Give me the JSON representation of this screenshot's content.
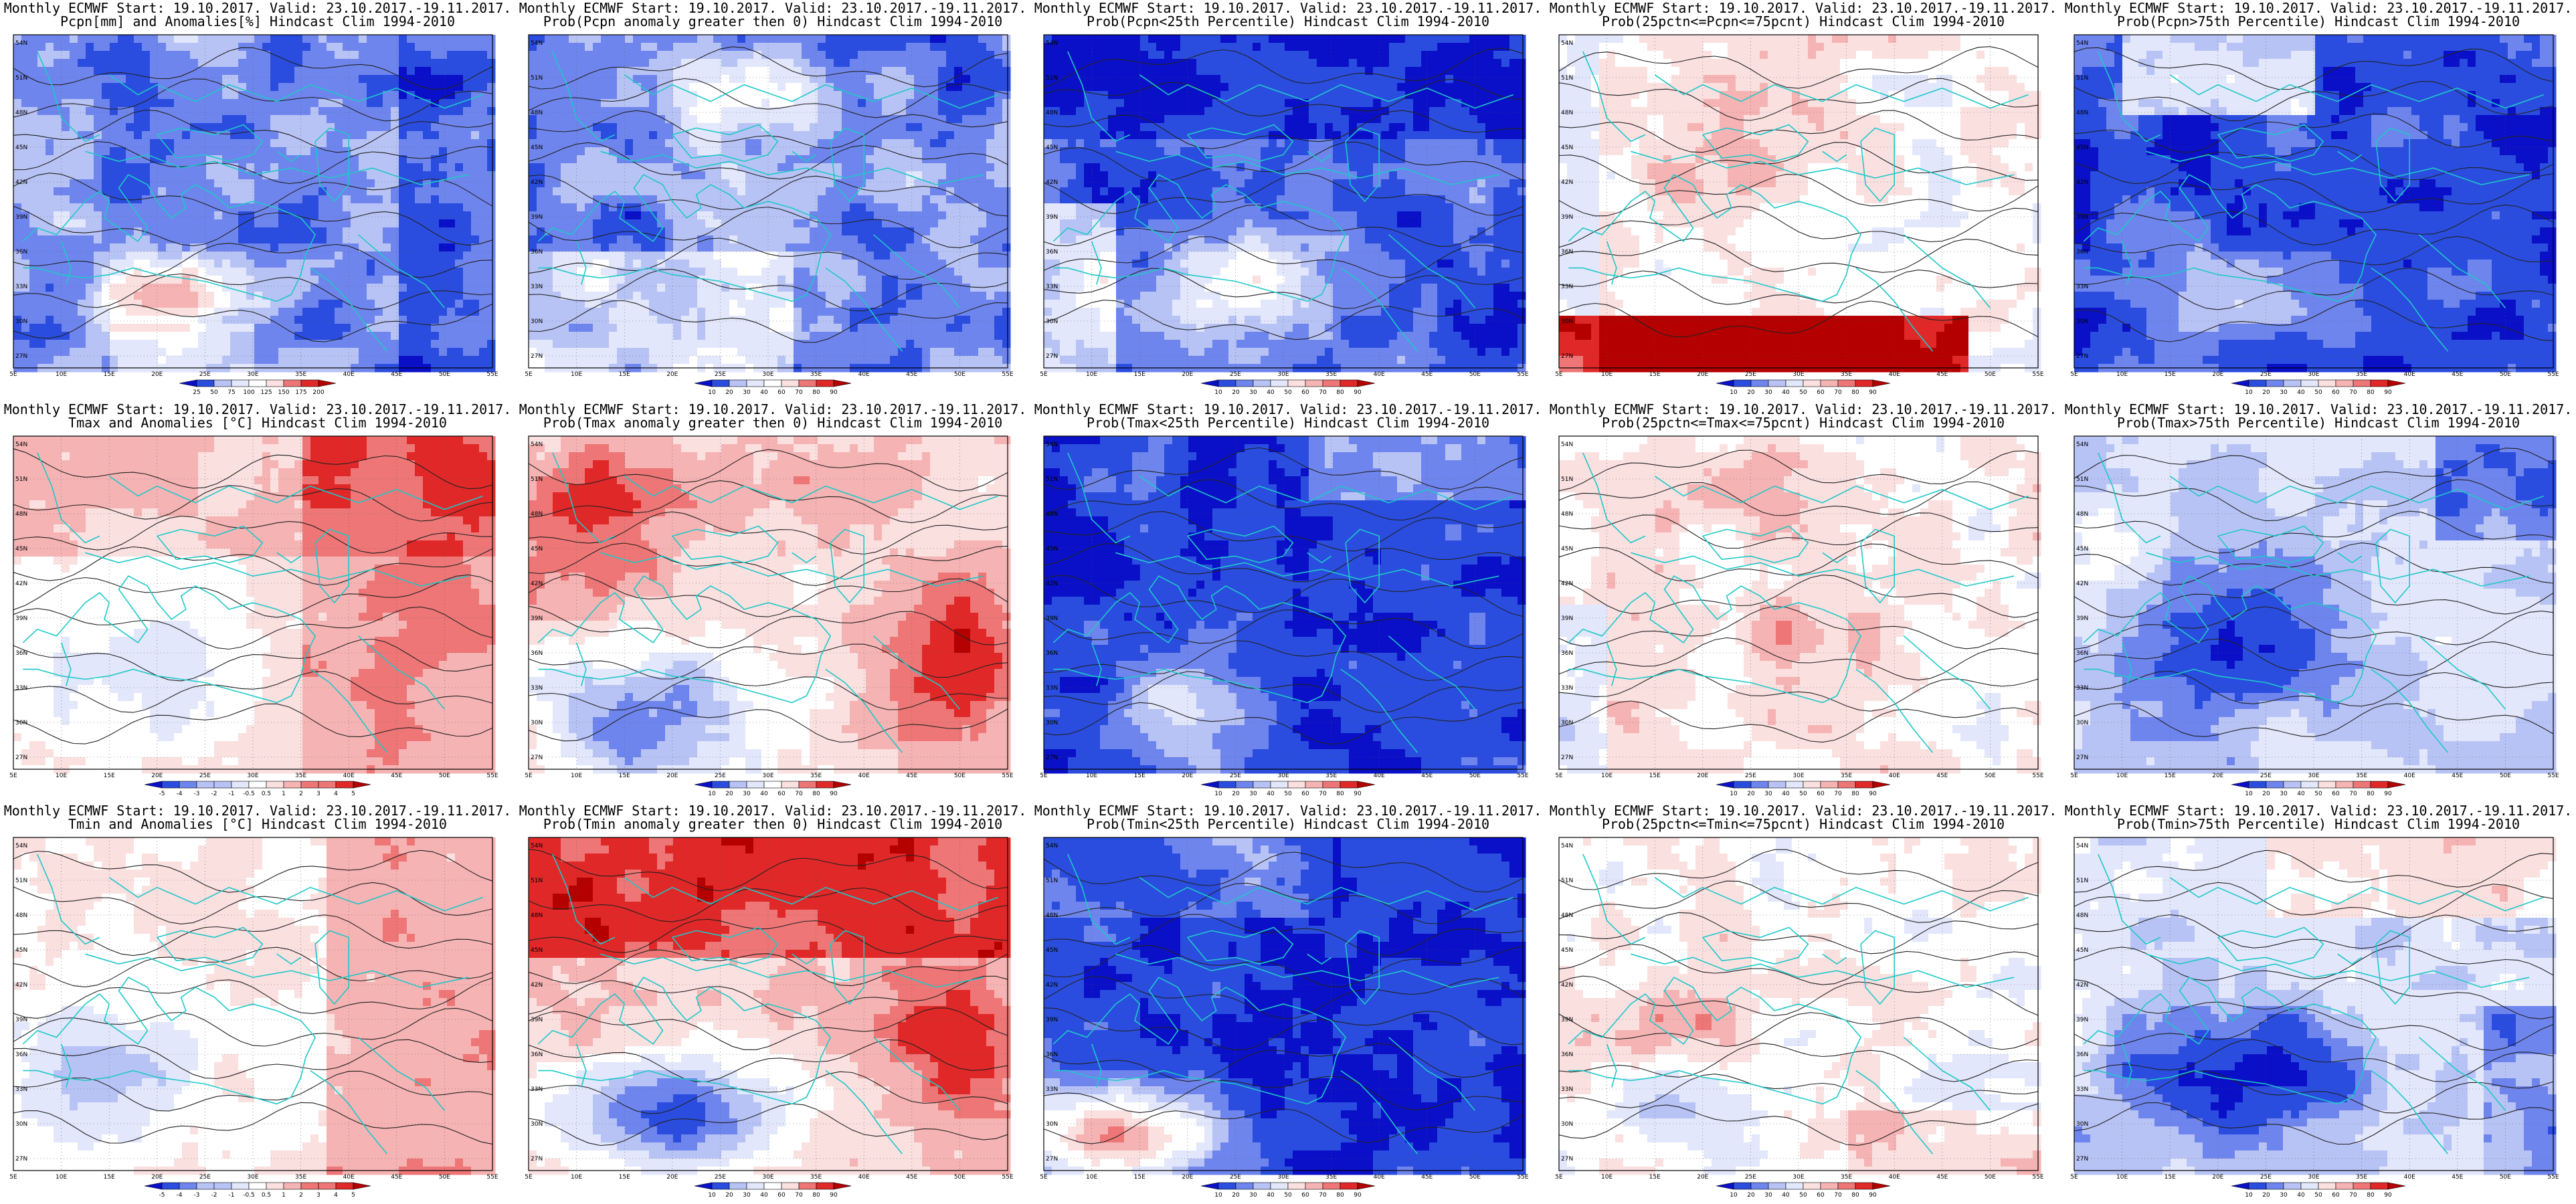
{
  "axes": {
    "lat_labels": [
      "54N",
      "51N",
      "48N",
      "45N",
      "42N",
      "39N",
      "36N",
      "33N",
      "30N",
      "27N"
    ],
    "lon_labels": [
      "5E",
      "10E",
      "15E",
      "20E",
      "25E",
      "30E",
      "35E",
      "40E",
      "45E",
      "50E",
      "55E"
    ]
  },
  "colors": {
    "deep_blue": "#0a10c8",
    "blue": "#2a4de0",
    "mid_blue": "#6f85ee",
    "light_blue": "#b8c3f5",
    "pale_blue": "#e2e7fb",
    "white": "#ffffff",
    "pale_red": "#fbe0e0",
    "light_red": "#f6b3b3",
    "mid_red": "#ee7676",
    "red": "#e02828",
    "deep_red": "#b40000",
    "coast_cyan": "#1ec8c8",
    "contour_black": "#222222"
  },
  "panels": [
    {
      "id": "pcpn-anom",
      "title1": "Monthly ECMWF Start: 19.10.2017. Valid: 23.10.2017.-19.11.2017.",
      "title2": "Pcpn[mm] and Anomalies[%] Hindcast Clim 1994-2010",
      "colorbar": [
        "25",
        "50",
        "75",
        "100",
        "125",
        "150",
        "175",
        "200"
      ],
      "field": "pcpn_anom"
    },
    {
      "id": "prob-pcpn-gt0",
      "title1": "Monthly ECMWF Start: 19.10.2017. Valid: 23.10.2017.-19.11.2017.",
      "title2": "Prob(Pcpn anomaly greater then 0) Hindcast Clim 1994-2010",
      "colorbar": [
        "10",
        "20",
        "30",
        "40",
        "60",
        "70",
        "80",
        "90"
      ],
      "field": "pcpn_gt0"
    },
    {
      "id": "prob-pcpn-lt25",
      "title1": "Monthly ECMWF Start: 19.10.2017. Valid: 23.10.2017.-19.11.2017.",
      "title2": "Prob(Pcpn<25th Percentile) Hindcast Clim 1994-2010",
      "colorbar": [
        "10",
        "20",
        "30",
        "40",
        "50",
        "60",
        "70",
        "80",
        "90"
      ],
      "field": "pcpn_lt25"
    },
    {
      "id": "prob-pcpn-mid",
      "title1": "Monthly ECMWF Start: 19.10.2017. Valid: 23.10.2017.-19.11.2017.",
      "title2": "Prob(25pctn<=Pcpn<=75pcnt) Hindcast Clim 1994-2010",
      "colorbar": [
        "10",
        "20",
        "30",
        "40",
        "50",
        "60",
        "70",
        "80",
        "90"
      ],
      "field": "pcpn_mid"
    },
    {
      "id": "prob-pcpn-gt75",
      "title1": "Monthly ECMWF Start: 19.10.2017. Valid: 23.10.2017.-19.11.2017.",
      "title2": "Prob(Pcpn>75th Percentile) Hindcast Clim 1994-2010",
      "colorbar": [
        "10",
        "20",
        "30",
        "40",
        "50",
        "60",
        "70",
        "80",
        "90"
      ],
      "field": "pcpn_gt75"
    },
    {
      "id": "tmax-anom",
      "title1": "Monthly ECMWF Start: 19.10.2017. Valid: 23.10.2017.-19.11.2017.",
      "title2": "Tmax and Anomalies [°C] Hindcast Clim 1994-2010",
      "colorbar": [
        "-5",
        "-4",
        "-3",
        "-2",
        "-1",
        "-0.5",
        "0.5",
        "1",
        "2",
        "3",
        "4",
        "5"
      ],
      "field": "tmax_anom"
    },
    {
      "id": "prob-tmax-gt0",
      "title1": "Monthly ECMWF Start: 19.10.2017. Valid: 23.10.2017.-19.11.2017.",
      "title2": "Prob(Tmax anomaly greater then 0) Hindcast Clim 1994-2010",
      "colorbar": [
        "10",
        "20",
        "30",
        "40",
        "60",
        "70",
        "80",
        "90"
      ],
      "field": "tmax_gt0"
    },
    {
      "id": "prob-tmax-lt25",
      "title1": "Monthly ECMWF Start: 19.10.2017. Valid: 23.10.2017.-19.11.2017.",
      "title2": "Prob(Tmax<25th Percentile) Hindcast Clim 1994-2010",
      "colorbar": [
        "10",
        "20",
        "30",
        "40",
        "50",
        "60",
        "70",
        "80",
        "90"
      ],
      "field": "tmax_lt25"
    },
    {
      "id": "prob-tmax-mid",
      "title1": "Monthly ECMWF Start: 19.10.2017. Valid: 23.10.2017.-19.11.2017.",
      "title2": "Prob(25pctn<=Tmax<=75pcnt) Hindcast Clim 1994-2010",
      "colorbar": [
        "10",
        "20",
        "30",
        "40",
        "50",
        "60",
        "70",
        "80",
        "90"
      ],
      "field": "tmax_mid"
    },
    {
      "id": "prob-tmax-gt75",
      "title1": "Monthly ECMWF Start: 19.10.2017. Valid: 23.10.2017.-19.11.2017.",
      "title2": "Prob(Tmax>75th Percentile) Hindcast Clim 1994-2010",
      "colorbar": [
        "10",
        "20",
        "30",
        "40",
        "50",
        "60",
        "70",
        "80",
        "90"
      ],
      "field": "tmax_gt75"
    },
    {
      "id": "tmin-anom",
      "title1": "Monthly ECMWF Start: 19.10.2017. Valid: 23.10.2017.-19.11.2017.",
      "title2": "Tmin and Anomalies [°C] Hindcast Clim 1994-2010",
      "colorbar": [
        "-5",
        "-4",
        "-3",
        "-2",
        "-1",
        "-0.5",
        "0.5",
        "1",
        "2",
        "3",
        "4",
        "5"
      ],
      "field": "tmin_anom"
    },
    {
      "id": "prob-tmin-gt0",
      "title1": "Monthly ECMWF Start: 19.10.2017. Valid: 23.10.2017.-19.11.2017.",
      "title2": "Prob(Tmin anomaly greater then 0) Hindcast Clim 1994-2010",
      "colorbar": [
        "10",
        "20",
        "30",
        "40",
        "60",
        "70",
        "80",
        "90"
      ],
      "field": "tmin_gt0"
    },
    {
      "id": "prob-tmin-lt25",
      "title1": "Monthly ECMWF Start: 19.10.2017. Valid: 23.10.2017.-19.11.2017.",
      "title2": "Prob(Tmin<25th Percentile) Hindcast Clim 1994-2010",
      "colorbar": [
        "10",
        "20",
        "30",
        "40",
        "50",
        "60",
        "70",
        "80",
        "90"
      ],
      "field": "tmin_lt25"
    },
    {
      "id": "prob-tmin-mid",
      "title1": "Monthly ECMWF Start: 19.10.2017. Valid: 23.10.2017.-19.11.2017.",
      "title2": "Prob(25pctn<=Tmin<=75pcnt) Hindcast Clim 1994-2010",
      "colorbar": [
        "10",
        "20",
        "30",
        "40",
        "50",
        "60",
        "70",
        "80",
        "90"
      ],
      "field": "tmin_mid"
    },
    {
      "id": "prob-tmin-gt75",
      "title1": "Monthly ECMWF Start: 19.10.2017. Valid: 23.10.2017.-19.11.2017.",
      "title2": "Prob(Tmin>75th Percentile) Hindcast Clim 1994-2010",
      "colorbar": [
        "10",
        "20",
        "30",
        "40",
        "50",
        "60",
        "70",
        "80",
        "90"
      ],
      "field": "tmin_gt75"
    }
  ]
}
